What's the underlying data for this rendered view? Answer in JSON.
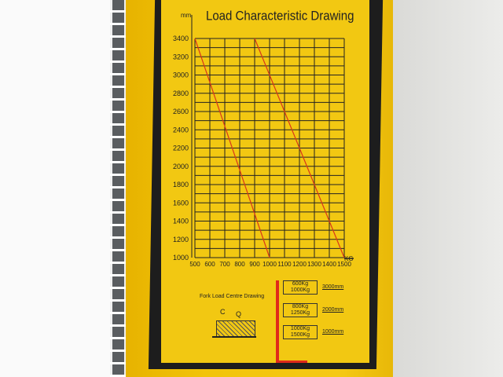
{
  "chart_data": {
    "type": "line",
    "title": "Load Characteristic Drawing",
    "xlabel": "KG",
    "ylabel": "mm",
    "xlim": [
      500,
      1500
    ],
    "ylim": [
      1000,
      3400
    ],
    "x_ticks": [
      "500",
      "600",
      "700",
      "800",
      "900",
      "1000",
      "1100",
      "1200",
      "1300",
      "1400",
      "1500"
    ],
    "y_ticks": [
      "1000",
      "1200",
      "1400",
      "1600",
      "1800",
      "2000",
      "2200",
      "2400",
      "2600",
      "2800",
      "3000",
      "3200",
      "3400"
    ],
    "grid": true,
    "series": [
      {
        "points": [
          [
            500,
            3400
          ],
          [
            1000,
            1000
          ]
        ]
      },
      {
        "points": [
          [
            900,
            3400
          ],
          [
            1500,
            1000
          ]
        ]
      }
    ],
    "line_color": "#d9361a"
  },
  "fork_diagram": {
    "title": "Fork Load Centre Drawing",
    "label_c": "C",
    "label_q": "Q",
    "loads": [
      {
        "line1": "600Kg",
        "line2": "1000Kg",
        "height": "3000mm"
      },
      {
        "line1": "800Kg",
        "line2": "1250Kg",
        "height": "2000mm"
      },
      {
        "line1": "1000Kg",
        "line2": "1500Kg",
        "height": "1000mm"
      }
    ]
  },
  "colors": {
    "panel": "#f2c812",
    "mast": "#e02a1a",
    "border": "#1d1d1d"
  }
}
